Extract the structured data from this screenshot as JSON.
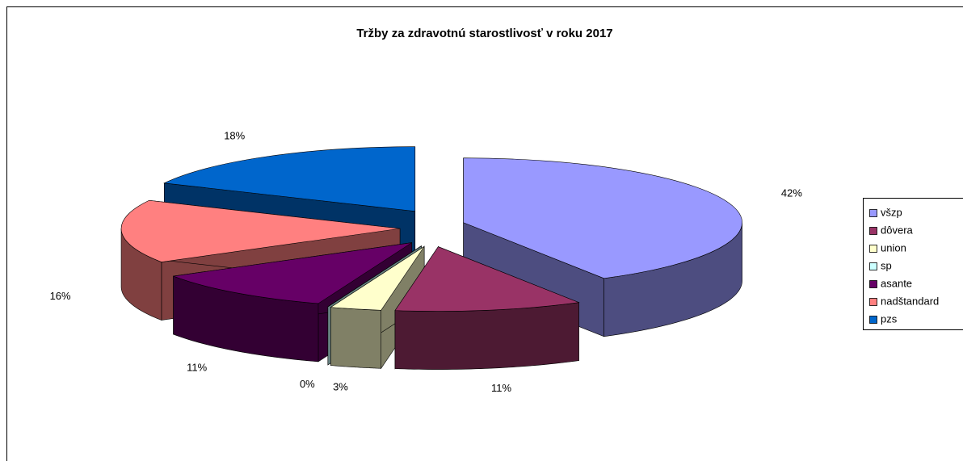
{
  "chart_data": {
    "type": "pie",
    "title": "Tržby za zdravotnú starostlivosť v roku 2017",
    "categories": [
      "všzp",
      "dôvera",
      "union",
      "sp",
      "asante",
      "nadštandard",
      "pzs"
    ],
    "values": [
      42,
      11,
      3,
      0,
      11,
      16,
      18
    ],
    "value_labels": [
      "42%",
      "11%",
      "3%",
      "0%",
      "11%",
      "16%",
      "18%"
    ],
    "colors": [
      "#9999ff",
      "#993366",
      "#ffffcc",
      "#ccffff",
      "#660066",
      "#ff8080",
      "#0066cc"
    ],
    "legend": "right"
  }
}
